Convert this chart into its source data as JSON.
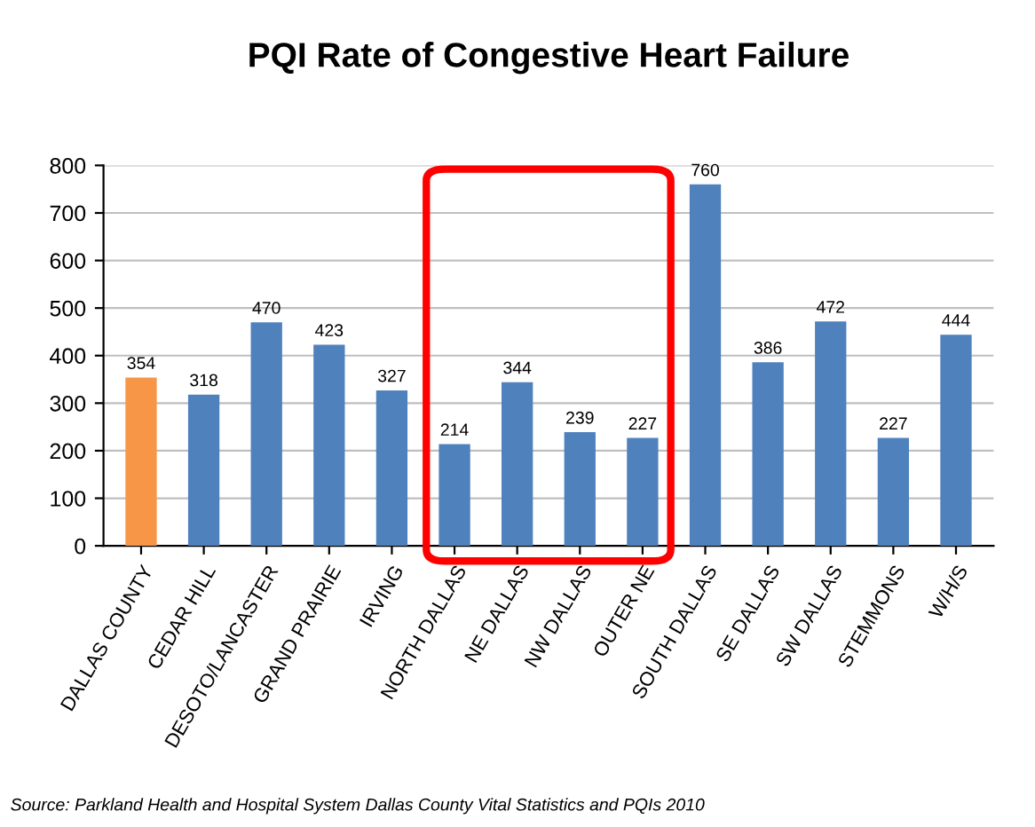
{
  "chart_data": {
    "type": "bar",
    "title": "PQI Rate of Congestive Heart Failure",
    "categories": [
      "DALLAS COUNTY",
      "CEDAR HILL",
      "DESOTO/LANCASTER",
      "GRAND PRAIRIE",
      "IRVING",
      "NORTH DALLAS",
      "NE DALLAS",
      "NW DALLAS",
      "OUTER NE",
      "SOUTH DALLAS",
      "SE DALLAS",
      "SW DALLAS",
      "STEMMONS",
      "W/H/S"
    ],
    "values": [
      354,
      318,
      470,
      423,
      327,
      214,
      344,
      239,
      227,
      760,
      386,
      472,
      227,
      444
    ],
    "colors": [
      "#f79646",
      "#4f81bd",
      "#4f81bd",
      "#4f81bd",
      "#4f81bd",
      "#4f81bd",
      "#4f81bd",
      "#4f81bd",
      "#4f81bd",
      "#4f81bd",
      "#4f81bd",
      "#4f81bd",
      "#4f81bd",
      "#4f81bd"
    ],
    "ylim": [
      0,
      800
    ],
    "yticks": [
      0,
      100,
      200,
      300,
      400,
      500,
      600,
      700,
      800
    ],
    "grid": "y",
    "data_labels": true,
    "annotations": [
      "Source: Parkland Health and Hospital System Dallas County Vital Statistics and PQIs 2010"
    ]
  }
}
